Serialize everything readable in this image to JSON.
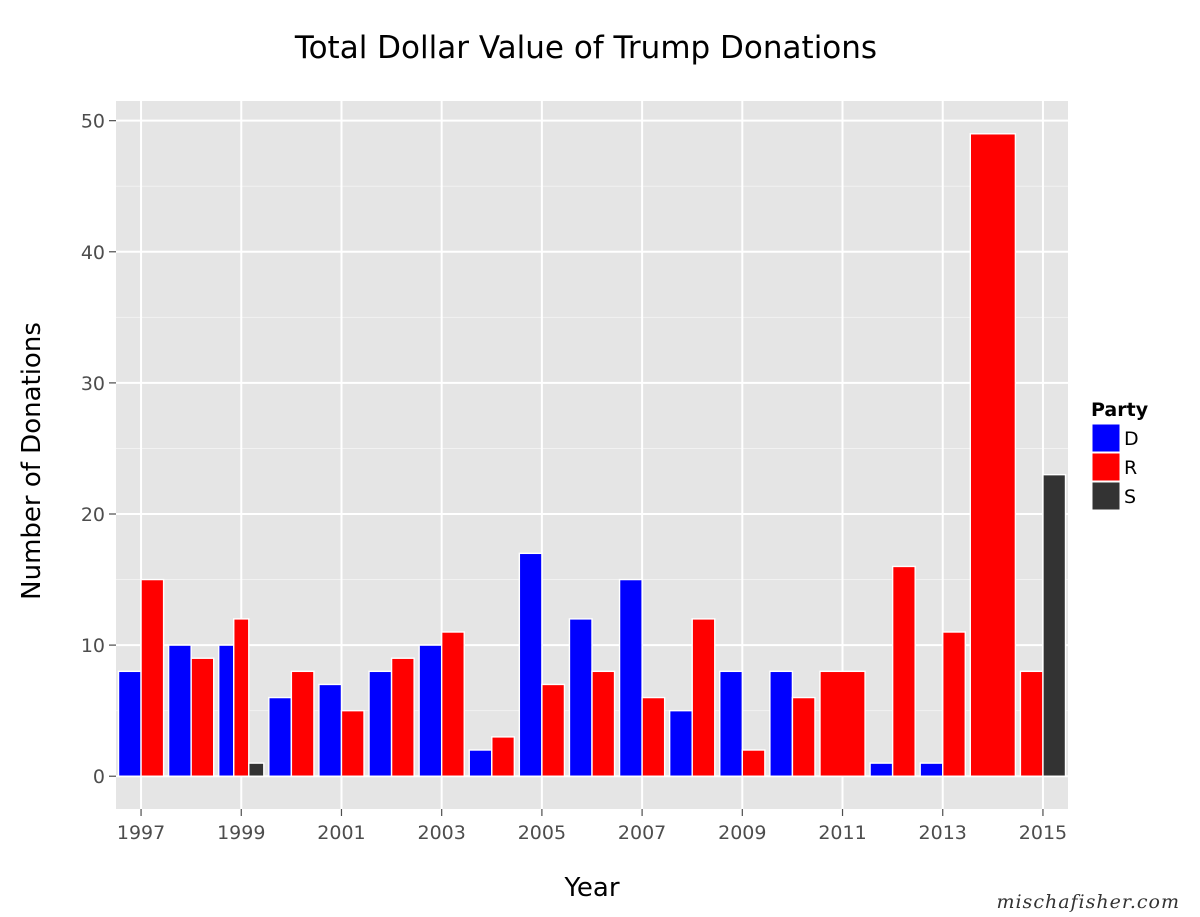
{
  "watermark": "mischafisher.com",
  "chart_data": {
    "type": "bar",
    "title": "Total Dollar Value of Trump Donations",
    "xlabel": "Year",
    "ylabel": "Number of Donations",
    "categories": [
      "1997",
      "1998",
      "1999",
      "2000",
      "2001",
      "2002",
      "2003",
      "2004",
      "2005",
      "2006",
      "2007",
      "2008",
      "2009",
      "2010",
      "2011",
      "2012",
      "2013",
      "2014",
      "2015"
    ],
    "x_tick_labels": [
      "1997",
      "1999",
      "2001",
      "2003",
      "2005",
      "2007",
      "2009",
      "2011",
      "2013",
      "2015"
    ],
    "y_ticks": [
      0,
      10,
      20,
      30,
      40,
      50
    ],
    "ylim": [
      -2.5,
      51.5
    ],
    "grid": true,
    "legend": {
      "title": "Party",
      "placement": "right"
    },
    "series": [
      {
        "name": "D",
        "color": "#0000ff",
        "values": [
          8,
          10,
          10,
          6,
          7,
          8,
          10,
          2,
          17,
          12,
          15,
          5,
          8,
          8,
          0,
          1,
          1,
          0,
          0
        ]
      },
      {
        "name": "R",
        "color": "#ff0000",
        "values": [
          15,
          9,
          12,
          8,
          5,
          9,
          11,
          3,
          7,
          8,
          6,
          12,
          2,
          6,
          8,
          16,
          11,
          49,
          8
        ]
      },
      {
        "name": "S",
        "color": "#333333",
        "values": [
          0,
          0,
          1,
          0,
          0,
          0,
          0,
          0,
          0,
          0,
          0,
          0,
          0,
          0,
          0,
          0,
          0,
          0,
          23
        ]
      }
    ]
  }
}
